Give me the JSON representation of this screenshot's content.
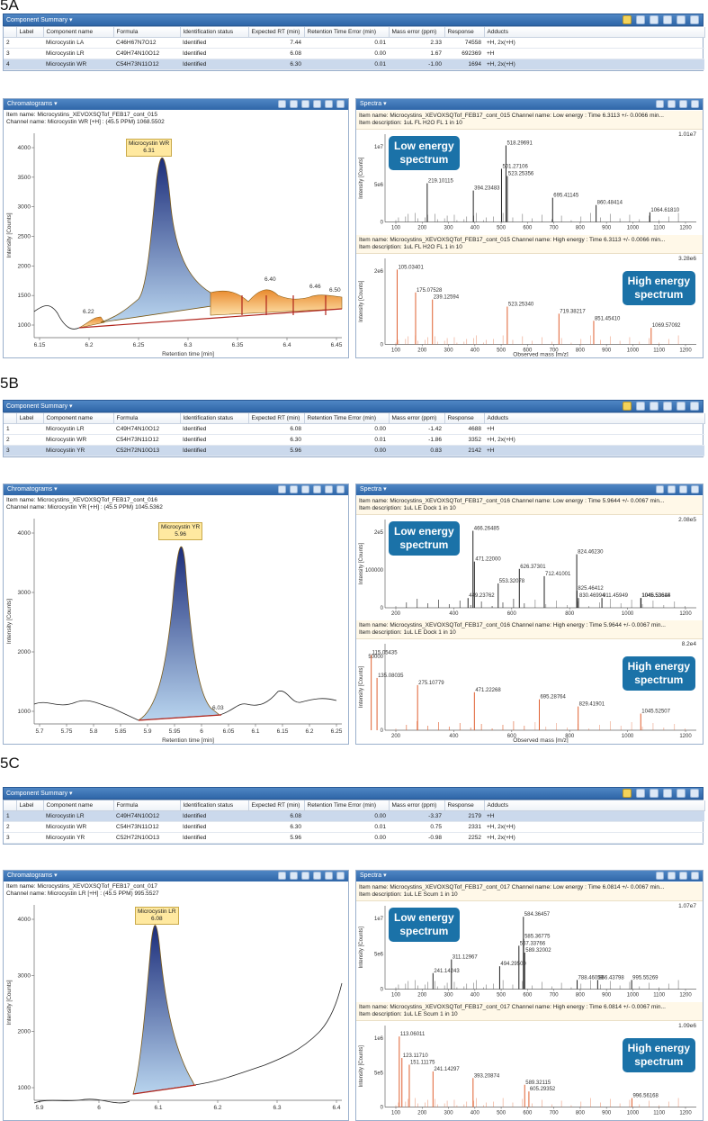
{
  "colors": {
    "bar": "#3a72b4",
    "peak_fill": "#3d5aa8",
    "orange": "#e98a2d",
    "callout": "#1b72a8",
    "spectrum_low": "#222222",
    "spectrum_high": "#e06030"
  },
  "columns": [
    "",
    "Label",
    "Component name",
    "Formula",
    "Identification status",
    "Expected RT (min)",
    "Retention Time Error (min)",
    "Mass error (ppm)",
    "Response",
    "Adducts"
  ],
  "panels": [
    {
      "label": "5A",
      "component_summary_title": "Component Summary ▾",
      "rows": [
        {
          "id": "2",
          "name": "Microcystin LA",
          "formula": "C46H67N7O12",
          "status": "Identified",
          "rt": "7.44",
          "rt_err": "0.01",
          "mass_err": "2.33",
          "response": "74558",
          "adducts": "+H, 2x(+H)"
        },
        {
          "id": "3",
          "name": "Microcystin LR",
          "formula": "C49H74N10O12",
          "status": "Identified",
          "rt": "6.08",
          "rt_err": "0.00",
          "mass_err": "1.67",
          "response": "692369",
          "adducts": "+H"
        },
        {
          "id": "4",
          "name": "Microcystin WR",
          "formula": "C54H73N11O12",
          "status": "Identified",
          "rt": "6.30",
          "rt_err": "0.01",
          "mass_err": "-1.00",
          "response": "1694",
          "adducts": "+H, 2x(+H)"
        }
      ],
      "selected_row": 2,
      "chromatogram": {
        "title": "Chromatograms ▾",
        "item_name": "Item name: Microcystins_XEVOXSQTof_FEB17_cont_015",
        "channel": "Channel name: Microcystin WR [+H] : (45.5 PPM) 1068.5502",
        "peak_label": "Microcystin WR",
        "peak_rt": "6.31",
        "xlabel": "Retention time [min]",
        "ylabel": "Intensity [Counts]",
        "xticks": [
          "6.15",
          "6.2",
          "6.25",
          "6.3",
          "6.35",
          "6.4",
          "6.45"
        ],
        "yticks": [
          "1000",
          "1500",
          "2000",
          "2500",
          "3000",
          "3500",
          "4000"
        ],
        "annotations": [
          "6.22",
          "6.40",
          "6.46",
          "6.50"
        ]
      },
      "spectra": {
        "title": "Spectra ▾",
        "low": {
          "item_name": "Item name: Microcystins_XEVOXSQTof_FEB17_cont_015   Channel name: Low energy : Time 6.3113 +/- 0.0066 min...",
          "description": "Item description: 1uL FL H2O FL 1 in 10",
          "max": "1.01e7",
          "yticks": [
            "0",
            "5e6",
            "1e7"
          ],
          "peaks": [
            "518.29691",
            "501.27106",
            "523.25356",
            "219.10115",
            "394.23483",
            "695.41145",
            "860.48414",
            "1064.61810"
          ],
          "callout": [
            "Low energy",
            "spectrum"
          ]
        },
        "high": {
          "item_name": "Item name: Microcystins_XEVOXSQTof_FEB17_cont_015   Channel name: High energy : Time 6.3113 +/- 0.0066 min...",
          "description": "Item description: 1uL FL H2O FL 1 in 10",
          "max": "3.28e6",
          "yticks": [
            "0",
            "2e6"
          ],
          "peaks": [
            "105.03401",
            "175.07528",
            "239.12594",
            "523.25340",
            "719.38217",
            "851.45410",
            "1069.57092"
          ],
          "callout": [
            "High energy",
            "spectrum"
          ]
        },
        "xticks": [
          "100",
          "200",
          "300",
          "400",
          "500",
          "600",
          "700",
          "800",
          "900",
          "1000",
          "1100",
          "1200"
        ],
        "xlabel": "Observed mass [m/z]",
        "ylabel": "Intensity [Counts]"
      }
    },
    {
      "label": "5B",
      "component_summary_title": "Component Summary ▾",
      "rows": [
        {
          "id": "1",
          "name": "Microcystin LR",
          "formula": "C49H74N10O12",
          "status": "Identified",
          "rt": "6.08",
          "rt_err": "0.00",
          "mass_err": "-1.42",
          "response": "4688",
          "adducts": "+H"
        },
        {
          "id": "2",
          "name": "Microcystin WR",
          "formula": "C54H73N11O12",
          "status": "Identified",
          "rt": "6.30",
          "rt_err": "0.01",
          "mass_err": "-1.86",
          "response": "3352",
          "adducts": "+H, 2x(+H)"
        },
        {
          "id": "3",
          "name": "Microcystin YR",
          "formula": "C52H72N10O13",
          "status": "Identified",
          "rt": "5.96",
          "rt_err": "0.00",
          "mass_err": "0.83",
          "response": "2142",
          "adducts": "+H"
        }
      ],
      "selected_row": 2,
      "chromatogram": {
        "title": "Chromatograms ▾",
        "item_name": "Item name: Microcystins_XEVOXSQTof_FEB17_cont_016",
        "channel": "Channel name: Microcystin YR [+H] : (45.5 PPM) 1045.5362",
        "peak_label": "Microcystin YR",
        "peak_rt": "5.96",
        "xlabel": "Retention time [min]",
        "ylabel": "Intensity [Counts]",
        "xticks": [
          "5.7",
          "5.75",
          "5.8",
          "5.85",
          "5.9",
          "5.95",
          "6",
          "6.05",
          "6.1",
          "6.15",
          "6.2",
          "6.25"
        ],
        "yticks": [
          "1000",
          "2000",
          "3000",
          "4000"
        ],
        "annotations": [
          "6.03"
        ]
      },
      "spectra": {
        "title": "Spectra ▾",
        "low": {
          "item_name": "Item name: Microcystins_XEVOXSQTof_FEB17_cont_016   Channel name: Low energy : Time 5.9644 +/- 0.0067 min...",
          "description": "Item description: 1uL LE Dock 1 in 10",
          "max": "2.08e5",
          "yticks": [
            "0",
            "100000",
            "2e5"
          ],
          "peaks": [
            "466.26485",
            "824.46230",
            "471.22000",
            "626.37301",
            "712.41001",
            "553.32078",
            "825.46412",
            "830.46994",
            "1045.53618",
            "911.45949",
            "1046.53644",
            "449.23762"
          ],
          "callout": [
            "Low energy",
            "spectrum"
          ]
        },
        "high": {
          "item_name": "Item name: Microcystins_XEVOXSQTof_FEB17_cont_016   Channel name: High energy : Time 5.9644 +/- 0.0067 min...",
          "description": "Item description: 1uL LE Dock 1 in 10",
          "max": "8.2e4",
          "yticks": [
            "0",
            "50000"
          ],
          "peaks": [
            "115.05435",
            "135.08035",
            "275.10779",
            "471.22268",
            "695.28764",
            "829.41901",
            "1045.52507"
          ],
          "callout": [
            "High energy",
            "spectrum"
          ]
        },
        "xticks": [
          "200",
          "400",
          "600",
          "800",
          "1000",
          "1200"
        ],
        "xlabel": "Observed mass [m/z]",
        "ylabel": "Intensity [Counts]"
      }
    },
    {
      "label": "5C",
      "component_summary_title": "Component Summary ▾",
      "rows": [
        {
          "id": "1",
          "name": "Microcystin LR",
          "formula": "C49H74N10O12",
          "status": "Identified",
          "rt": "6.08",
          "rt_err": "0.00",
          "mass_err": "-3.37",
          "response": "2179",
          "adducts": "+H"
        },
        {
          "id": "2",
          "name": "Microcystin WR",
          "formula": "C54H73N11O12",
          "status": "Identified",
          "rt": "6.30",
          "rt_err": "0.01",
          "mass_err": "0.75",
          "response": "2331",
          "adducts": "+H, 2x(+H)"
        },
        {
          "id": "3",
          "name": "Microcystin YR",
          "formula": "C52H72N10O13",
          "status": "Identified",
          "rt": "5.96",
          "rt_err": "0.00",
          "mass_err": "-0.98",
          "response": "2252",
          "adducts": "+H, 2x(+H)"
        }
      ],
      "selected_row": 0,
      "chromatogram": {
        "title": "Chromatograms ▾",
        "item_name": "Item name: Microcystins_XEVOXSQTof_FEB17_cont_017",
        "channel": "Channel name: Microcystin LR [+H] : (45.5 PPM) 995.5527",
        "peak_label": "Microcystin LR",
        "peak_rt": "6.08",
        "xlabel": "",
        "ylabel": "Intensity [Counts]",
        "xticks": [
          "5.9",
          "6",
          "6.1",
          "6.2",
          "6.3",
          "6.4"
        ],
        "yticks": [
          "1000",
          "2000",
          "3000",
          "4000"
        ],
        "annotations": []
      },
      "spectra": {
        "title": "Spectra ▾",
        "low": {
          "item_name": "Item name: Microcystins_XEVOXSQTof_FEB17_cont_017   Channel name: Low energy : Time 6.0814 +/- 0.0067 min...",
          "description": "Item description: 1uL LE Scum 1 in 10",
          "max": "1.07e7",
          "yticks": [
            "0",
            "5e6",
            "1e7"
          ],
          "peaks": [
            "584.36457",
            "585.36775",
            "567.33766",
            "589.32002",
            "311.12967",
            "494.29500",
            "241.14243",
            "788.46059",
            "866.43798",
            "995.55269"
          ],
          "callout": [
            "Low energy",
            "spectrum"
          ]
        },
        "high": {
          "item_name": "Item name: Microcystins_XEVOXSQTof_FEB17_cont_017   Channel name: High energy : Time 6.0814 +/- 0.0067 min...",
          "description": "Item description: 1uL LE Scum 1 in 10",
          "max": "1.09e6",
          "yticks": [
            "0",
            "5e5",
            "1e6"
          ],
          "peaks": [
            "113.06011",
            "123.11710",
            "151.11175",
            "241.14297",
            "393.20874",
            "589.32115",
            "605.29352",
            "996.56168"
          ],
          "callout": [
            "High energy",
            "spectrum"
          ]
        },
        "xticks": [
          "100",
          "200",
          "300",
          "400",
          "500",
          "600",
          "700",
          "800",
          "900",
          "1000",
          "1100",
          "1200"
        ],
        "xlabel": "",
        "ylabel": "Intensity [Counts]"
      }
    }
  ]
}
